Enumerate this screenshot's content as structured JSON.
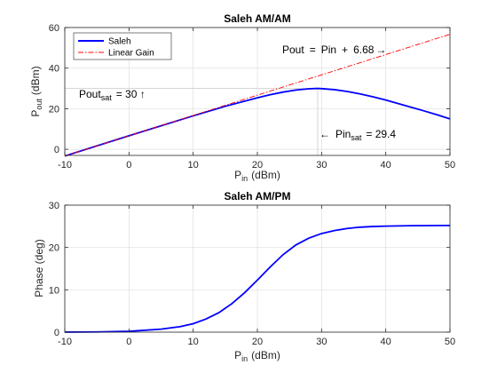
{
  "chart_data": [
    {
      "type": "line",
      "title": "Saleh AM/AM",
      "xlabel_main": "P",
      "xlabel_sub": "in",
      "xlabel_unit": "(dBm)",
      "ylabel_main": "P",
      "ylabel_sub": "out",
      "ylabel_unit": "(dBm)",
      "xlim": [
        -10,
        50
      ],
      "ylim": [
        -3,
        60
      ],
      "xticks": [
        -10,
        0,
        10,
        20,
        30,
        40,
        50
      ],
      "yticks": [
        0,
        20,
        40,
        60
      ],
      "grid": true,
      "legend_position": "top-left",
      "series": [
        {
          "name": "Saleh",
          "color": "#0000ff",
          "style": "solid",
          "x": [
            -10,
            -5,
            0,
            5,
            10,
            15,
            20,
            22,
            24,
            26,
            28,
            29.4,
            30,
            32,
            34,
            36,
            38,
            40,
            42,
            44,
            46,
            48,
            50
          ],
          "y": [
            -3.3,
            1.7,
            6.7,
            11.6,
            16.5,
            21.2,
            25.4,
            26.9,
            28.2,
            29.2,
            29.8,
            30.0,
            29.9,
            29.4,
            28.5,
            27.3,
            25.9,
            24.3,
            22.5,
            20.7,
            18.9,
            17.0,
            15.0
          ]
        },
        {
          "name": "Linear Gain",
          "color": "#ff0000",
          "style": "dashdot",
          "x": [
            -10,
            50
          ],
          "y": [
            -3.32,
            56.68
          ]
        }
      ],
      "annotations": [
        {
          "id": "pout-eq",
          "parts": [
            "Pout",
            "=",
            "Pin",
            "+",
            "6.68",
            "→"
          ]
        },
        {
          "id": "poutsat",
          "main": "Pout",
          "sub": "sat",
          "rest": "=  30 ↑"
        },
        {
          "id": "pinsat",
          "arrow": "←",
          "main": "Pin",
          "sub": "sat",
          "rest": "=  29.4"
        }
      ],
      "ref_lines": {
        "poutsat_y": 30,
        "pinsat_x": 29.4
      }
    },
    {
      "type": "line",
      "title": "Saleh AM/PM",
      "xlabel_main": "P",
      "xlabel_sub": "in",
      "xlabel_unit": "(dBm)",
      "ylabel": "Phase (deg)",
      "xlim": [
        -10,
        50
      ],
      "ylim": [
        0,
        30
      ],
      "xticks": [
        -10,
        0,
        10,
        20,
        30,
        40,
        50
      ],
      "yticks": [
        0,
        10,
        20,
        30
      ],
      "grid": true,
      "series": [
        {
          "name": "Saleh",
          "color": "#0000ff",
          "style": "solid",
          "x": [
            -10,
            -5,
            0,
            5,
            8,
            10,
            12,
            14,
            16,
            18,
            20,
            22,
            24,
            26,
            28,
            30,
            32,
            34,
            36,
            38,
            40,
            44,
            50
          ],
          "y": [
            0.01,
            0.05,
            0.2,
            0.7,
            1.3,
            2.0,
            3.1,
            4.6,
            6.7,
            9.3,
            12.3,
            15.4,
            18.3,
            20.6,
            22.2,
            23.3,
            24.0,
            24.5,
            24.8,
            24.95,
            25.05,
            25.15,
            25.2
          ]
        }
      ]
    }
  ]
}
